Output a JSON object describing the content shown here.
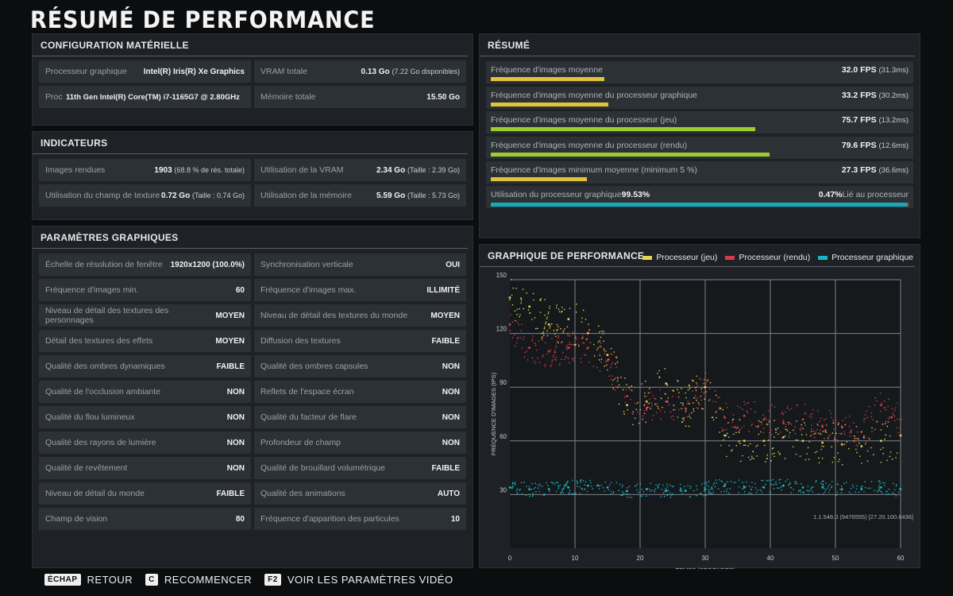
{
  "title": "RÉSUMÉ DE PERFORMANCE",
  "hardware": {
    "heading": "CONFIGURATION MATÉRIELLE",
    "rows": [
      {
        "label": "Processeur graphique",
        "value": "Intel(R) Iris(R) Xe Graphics",
        "extra": ""
      },
      {
        "label": "VRAM totale",
        "value": "0.13 Go",
        "extra": "(7.22 Go disponibles)"
      },
      {
        "label": "Proc",
        "value": "11th Gen Intel(R) Core(TM) i7-1165G7 @ 2.80GHz",
        "extra": ""
      },
      {
        "label": "Mémoire totale",
        "value": "15.50 Go",
        "extra": ""
      }
    ]
  },
  "indicators": {
    "heading": "INDICATEURS",
    "rows": [
      {
        "label": "Images rendues",
        "value": "1903",
        "extra": "(68.8 % de rés. totale)"
      },
      {
        "label": "Utilisation de la VRAM",
        "value": "2.34 Go",
        "extra": "(Taille : 2.39 Go)"
      },
      {
        "label": "Utilisation du champ de texture",
        "value": "0.72 Go",
        "extra": "(Taille : 0.74 Go)"
      },
      {
        "label": "Utilisation de la mémoire",
        "value": "5.59 Go",
        "extra": "(Taille : 5.73 Go)"
      }
    ]
  },
  "graphics": {
    "heading": "PARAMÈTRES GRAPHIQUES",
    "rows": [
      {
        "label": "Échelle de résolution de fenêtre",
        "value": "1920x1200 (100.0%)"
      },
      {
        "label": "Synchronisation verticale",
        "value": "OUI"
      },
      {
        "label": "Fréquence d'images min.",
        "value": "60"
      },
      {
        "label": "Fréquence d'images max.",
        "value": "ILLIMITÉ"
      },
      {
        "label": "Niveau de détail des textures des personnages",
        "value": "MOYEN"
      },
      {
        "label": "Niveau de détail des textures du monde",
        "value": "MOYEN"
      },
      {
        "label": "Détail des textures des effets",
        "value": "MOYEN"
      },
      {
        "label": "Diffusion des textures",
        "value": "FAIBLE"
      },
      {
        "label": "Qualité des ombres dynamiques",
        "value": "FAIBLE"
      },
      {
        "label": "Qualité des ombres capsules",
        "value": "NON"
      },
      {
        "label": "Qualité de l'occlusion ambiante",
        "value": "NON"
      },
      {
        "label": "Reflets de l'espace écran",
        "value": "NON"
      },
      {
        "label": "Qualité du flou lumineux",
        "value": "NON"
      },
      {
        "label": "Qualité du facteur de flare",
        "value": "NON"
      },
      {
        "label": "Qualité des rayons de lumière",
        "value": "NON"
      },
      {
        "label": "Profondeur de champ",
        "value": "NON"
      },
      {
        "label": "Qualité de revêtement",
        "value": "NON"
      },
      {
        "label": "Qualité de brouillard volumétrique",
        "value": "FAIBLE"
      },
      {
        "label": "Niveau de détail du monde",
        "value": "FAIBLE"
      },
      {
        "label": "Qualité des animations",
        "value": "AUTO"
      },
      {
        "label": "Champ de vision",
        "value": "80"
      },
      {
        "label": "Fréquence d'apparition des particules",
        "value": "10"
      }
    ]
  },
  "summary": {
    "heading": "RÉSUMÉ",
    "rows": [
      {
        "label": "Fréquence d'images moyenne",
        "fps": "32.0 FPS",
        "ms": "(31.3ms)",
        "fraction": 0.27,
        "color": "#e3c23b"
      },
      {
        "label": "Fréquence d'images moyenne du processeur graphique",
        "fps": "33.2 FPS",
        "ms": "(30.2ms)",
        "fraction": 0.28,
        "color": "#e3c23b"
      },
      {
        "label": "Fréquence d'images moyenne du processeur (jeu)",
        "fps": "75.7 FPS",
        "ms": "(13.2ms)",
        "fraction": 0.63,
        "color": "#9bcd2e"
      },
      {
        "label": "Fréquence d'images moyenne du processeur (rendu)",
        "fps": "79.6 FPS",
        "ms": "(12.6ms)",
        "fraction": 0.665,
        "color": "#9bcd2e"
      },
      {
        "label": "Fréquence d'images minimum moyenne (minimum 5 %)",
        "fps": "27.3 FPS",
        "ms": "(36.6ms)",
        "fraction": 0.23,
        "color": "#e3c23b"
      }
    ],
    "gpu_usage_label": "Utilisation du processeur graphique",
    "gpu_usage_value": "99.53%",
    "cpu_bound_value": "0.47%",
    "cpu_bound_label": "Lié au processeur",
    "gpu_fraction": 0.9953,
    "gpu_color": "#18a9b8",
    "cpu_color": "#d83a4a"
  },
  "perf_graph": {
    "heading": "GRAPHIQUE DE PERFORMANCE",
    "build_info": "1.1.548.0 (9476555) [27.20.100.8436]"
  },
  "chart_data": {
    "type": "scatter",
    "title": "GRAPHIQUE DE PERFORMANCE",
    "xlabel": "TEMPS (SECONDES)",
    "ylabel": "FRÉQUENCE D'IMAGES (IPS)",
    "xlim": [
      0,
      60
    ],
    "ylim": [
      0,
      150
    ],
    "xticks": [
      0,
      10,
      20,
      30,
      40,
      50,
      60
    ],
    "yticks": [
      30,
      60,
      90,
      120,
      150
    ],
    "series": [
      {
        "name": "Processeur (jeu)",
        "color": "#e8d44d",
        "x": [
          0,
          3,
          6,
          9,
          12,
          15,
          18,
          21,
          24,
          27,
          30,
          33,
          36,
          39,
          42,
          45,
          48,
          51,
          54,
          57,
          60
        ],
        "y": [
          140,
          135,
          125,
          128,
          120,
          108,
          80,
          82,
          92,
          78,
          90,
          63,
          60,
          60,
          62,
          60,
          59,
          58,
          57,
          60,
          63
        ]
      },
      {
        "name": "Processeur (rendu)",
        "color": "#d83a4a",
        "x": [
          0,
          3,
          6,
          9,
          12,
          15,
          18,
          21,
          24,
          27,
          30,
          33,
          36,
          39,
          42,
          45,
          48,
          51,
          54,
          57,
          60
        ],
        "y": [
          125,
          112,
          110,
          112,
          112,
          105,
          85,
          78,
          82,
          78,
          92,
          73,
          74,
          72,
          70,
          72,
          68,
          68,
          65,
          80,
          72
        ]
      },
      {
        "name": "Processeur graphique",
        "color": "#1bb4c4",
        "x": [
          0,
          3,
          6,
          9,
          12,
          15,
          18,
          21,
          24,
          27,
          30,
          33,
          36,
          39,
          42,
          45,
          48,
          51,
          54,
          57,
          60
        ],
        "y": [
          34,
          33,
          33,
          34,
          35,
          34,
          32,
          33,
          32,
          32,
          33,
          35,
          34,
          34,
          35,
          34,
          34,
          33,
          33,
          34,
          33
        ]
      }
    ]
  },
  "footer": [
    {
      "key": "ÉCHAP",
      "label": "RETOUR"
    },
    {
      "key": "C",
      "label": "RECOMMENCER"
    },
    {
      "key": "F2",
      "label": "VOIR LES PARAMÈTRES VIDÉO"
    }
  ]
}
